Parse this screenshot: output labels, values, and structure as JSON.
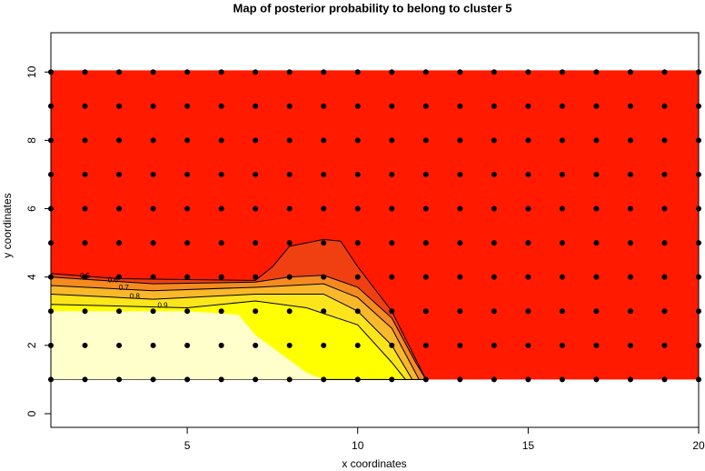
{
  "chart_data": {
    "type": "contour",
    "title": "Map of posterior probability to belong to cluster  5",
    "x_label": "x coordinates",
    "y_label": "y coordinates",
    "xlim": [
      1,
      20
    ],
    "ylim": [
      -0.4,
      11.15
    ],
    "xticks": [
      5,
      10,
      15,
      20
    ],
    "yticks": [
      0,
      2,
      4,
      6,
      8,
      10
    ],
    "background": {
      "color": "#ff1a00",
      "x": [
        1,
        20,
        20,
        1
      ],
      "y": [
        1,
        1,
        10.05,
        10.05
      ]
    },
    "regions": [
      {
        "level": 0.5,
        "color": "#f04012",
        "x": [
          1,
          3,
          7,
          7.5,
          8,
          9,
          9.5,
          10,
          11,
          11.6,
          12,
          1
        ],
        "y": [
          4.1,
          3.95,
          3.9,
          4.3,
          4.9,
          5.1,
          5.05,
          4.3,
          3,
          1.8,
          1,
          1
        ]
      },
      {
        "level": 0.6,
        "color": "#f58a1f",
        "x": [
          1,
          4,
          7,
          8,
          9,
          10,
          11,
          11.7,
          12,
          1
        ],
        "y": [
          4.0,
          3.8,
          3.85,
          4.0,
          4.05,
          3.7,
          2.8,
          1.5,
          1,
          1
        ]
      },
      {
        "level": 0.7,
        "color": "#f9b72a",
        "x": [
          1,
          4,
          7,
          9,
          10,
          11,
          11.8,
          1
        ],
        "y": [
          3.75,
          3.6,
          3.7,
          3.8,
          3.4,
          2.5,
          1,
          1
        ]
      },
      {
        "level": 0.8,
        "color": "#fde51c",
        "x": [
          1,
          4,
          7,
          9,
          10,
          11,
          11.6,
          1
        ],
        "y": [
          3.5,
          3.35,
          3.5,
          3.5,
          3.0,
          2.0,
          1,
          1
        ]
      },
      {
        "level": 0.9,
        "color": "#ffff00",
        "x": [
          1,
          5,
          7,
          8.5,
          10,
          11,
          11.4,
          1
        ],
        "y": [
          3.2,
          3.1,
          3.3,
          3.1,
          2.6,
          1.5,
          1,
          1
        ]
      },
      {
        "color": "#ffffcc",
        "x": [
          1,
          5,
          6.5,
          7,
          8.5,
          9,
          1
        ],
        "y": [
          3.0,
          3.0,
          2.9,
          2.3,
          1.2,
          1,
          1
        ]
      }
    ],
    "grid_x": [
      1,
      2,
      3,
      4,
      5,
      6,
      7,
      8,
      9,
      10,
      11,
      12,
      13,
      14,
      15,
      16,
      17,
      18,
      19,
      20
    ],
    "grid_y": [
      1,
      2,
      3,
      4,
      5,
      6,
      7,
      8,
      9,
      10
    ],
    "point_color": "#000000"
  }
}
